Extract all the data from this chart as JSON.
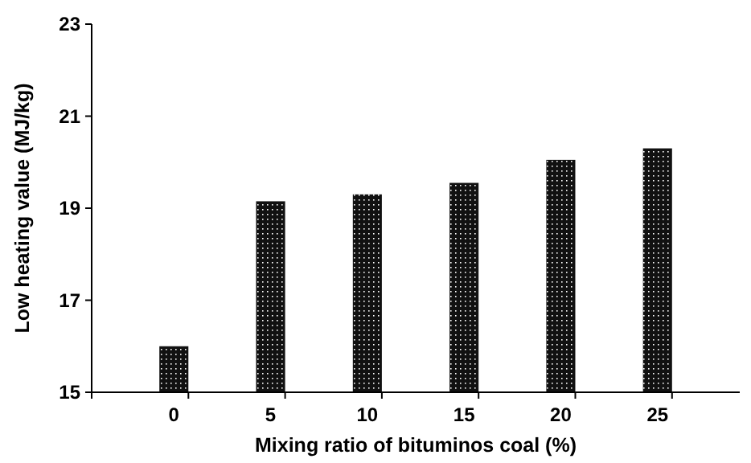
{
  "chart_data": {
    "type": "bar",
    "xlabel": "Mixing ratio of bituminos coal (%)",
    "ylabel": "Low heating value (MJ/kg)",
    "categories": [
      "0",
      "5",
      "10",
      "15",
      "20",
      "25"
    ],
    "values": [
      16.0,
      19.15,
      19.3,
      19.55,
      20.05,
      20.3
    ],
    "color": "#111111",
    "ylim": [
      15,
      23
    ],
    "yticks": [
      15,
      17,
      19,
      21,
      23
    ],
    "grid": false
  }
}
